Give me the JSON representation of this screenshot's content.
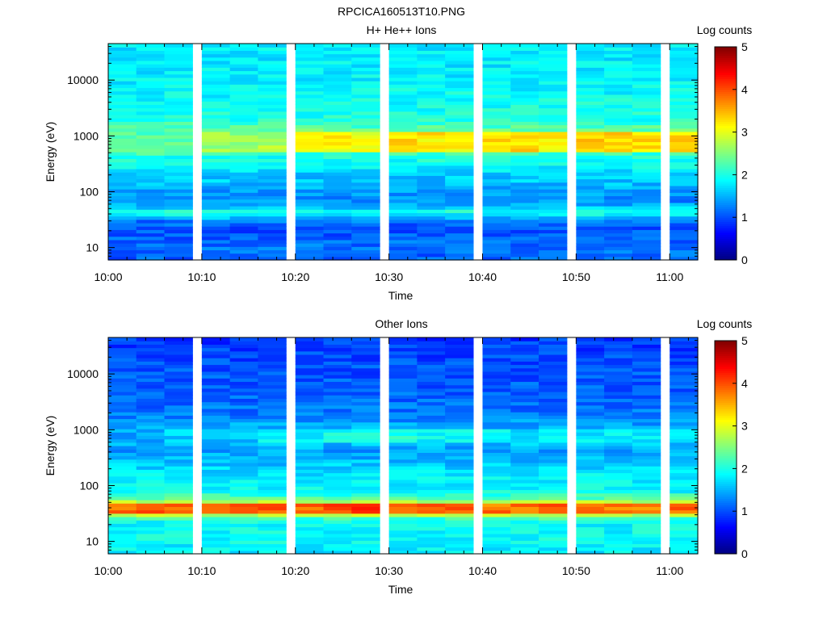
{
  "figure_title": "RPCICA160513T10.PNG",
  "chart_data": [
    {
      "type": "heatmap",
      "title": "H+ He++ Ions",
      "xlabel": "Time",
      "ylabel": "Energy (eV)",
      "y_scale": "log",
      "ylim": [
        6,
        45000
      ],
      "xlim": [
        "10:00",
        "11:03"
      ],
      "x_ticks": [
        "10:00",
        "10:10",
        "10:20",
        "10:30",
        "10:40",
        "10:50",
        "11:00"
      ],
      "y_ticks": [
        "10",
        "100",
        "1000",
        "10000"
      ],
      "colorbar": {
        "label": "Log counts",
        "range": [
          0,
          5
        ],
        "ticks": [
          "0",
          "1",
          "2",
          "3",
          "4",
          "5"
        ],
        "colormap": "jet"
      },
      "time_bins": [
        "10:00",
        "10:03",
        "10:06",
        "10:10",
        "10:13",
        "10:16",
        "10:20",
        "10:23",
        "10:26",
        "10:30",
        "10:33",
        "10:36",
        "10:40",
        "10:43",
        "10:46",
        "10:50",
        "10:53",
        "10:56",
        "11:00"
      ],
      "profile": [
        {
          "energy_eV": 7,
          "log_counts": 1.1
        },
        {
          "energy_eV": 10,
          "log_counts": 1.2
        },
        {
          "energy_eV": 15,
          "log_counts": 1.1
        },
        {
          "energy_eV": 22,
          "log_counts": 1.0
        },
        {
          "energy_eV": 30,
          "log_counts": 1.2
        },
        {
          "energy_eV": 38,
          "log_counts": 1.8
        },
        {
          "energy_eV": 45,
          "log_counts": 2.0
        },
        {
          "energy_eV": 55,
          "log_counts": 1.5
        },
        {
          "energy_eV": 70,
          "log_counts": 1.3
        },
        {
          "energy_eV": 100,
          "log_counts": 1.4
        },
        {
          "energy_eV": 150,
          "log_counts": 1.6
        },
        {
          "energy_eV": 200,
          "log_counts": 1.6
        },
        {
          "energy_eV": 300,
          "log_counts": 1.9
        },
        {
          "energy_eV": 450,
          "log_counts": 2.0
        },
        {
          "energy_eV": 600,
          "log_counts": 2.6
        },
        {
          "energy_eV": 750,
          "log_counts": 3.2
        },
        {
          "energy_eV": 900,
          "log_counts": 3.0
        },
        {
          "energy_eV": 1200,
          "log_counts": 2.4
        },
        {
          "energy_eV": 2000,
          "log_counts": 2.0
        },
        {
          "energy_eV": 5000,
          "log_counts": 1.9
        },
        {
          "energy_eV": 15000,
          "log_counts": 1.8
        },
        {
          "energy_eV": 45000,
          "log_counts": 1.8
        }
      ],
      "time_modulation": [
        {
          "energy_range_eV": [
            500,
            1200
          ],
          "log_counts_by_time_bin": [
            2.3,
            2.3,
            2.4,
            2.6,
            2.6,
            2.7,
            3.1,
            3.1,
            3.0,
            3.3,
            3.2,
            3.2,
            3.3,
            3.3,
            3.2,
            3.4,
            3.3,
            3.3,
            3.3
          ]
        }
      ]
    },
    {
      "type": "heatmap",
      "title": "Other Ions",
      "xlabel": "Time",
      "ylabel": "Energy (eV)",
      "y_scale": "log",
      "ylim": [
        6,
        45000
      ],
      "xlim": [
        "10:00",
        "11:03"
      ],
      "x_ticks": [
        "10:00",
        "10:10",
        "10:20",
        "10:30",
        "10:40",
        "10:50",
        "11:00"
      ],
      "y_ticks": [
        "10",
        "100",
        "1000",
        "10000"
      ],
      "colorbar": {
        "label": "Log counts",
        "range": [
          0,
          5
        ],
        "ticks": [
          "0",
          "1",
          "2",
          "3",
          "4",
          "5"
        ],
        "colormap": "jet"
      },
      "time_bins": [
        "10:00",
        "10:03",
        "10:06",
        "10:10",
        "10:13",
        "10:16",
        "10:20",
        "10:23",
        "10:26",
        "10:30",
        "10:33",
        "10:36",
        "10:40",
        "10:43",
        "10:46",
        "10:50",
        "10:53",
        "10:56",
        "11:00"
      ],
      "profile": [
        {
          "energy_eV": 7,
          "log_counts": 1.8
        },
        {
          "energy_eV": 10,
          "log_counts": 1.9
        },
        {
          "energy_eV": 15,
          "log_counts": 1.9
        },
        {
          "energy_eV": 22,
          "log_counts": 1.9
        },
        {
          "energy_eV": 28,
          "log_counts": 2.3
        },
        {
          "energy_eV": 33,
          "log_counts": 3.5
        },
        {
          "energy_eV": 40,
          "log_counts": 3.9
        },
        {
          "energy_eV": 47,
          "log_counts": 3.5
        },
        {
          "energy_eV": 55,
          "log_counts": 2.4
        },
        {
          "energy_eV": 80,
          "log_counts": 1.9
        },
        {
          "energy_eV": 150,
          "log_counts": 1.8
        },
        {
          "energy_eV": 250,
          "log_counts": 1.6
        },
        {
          "energy_eV": 400,
          "log_counts": 1.4
        },
        {
          "energy_eV": 600,
          "log_counts": 1.6
        },
        {
          "energy_eV": 800,
          "log_counts": 1.8
        },
        {
          "energy_eV": 1100,
          "log_counts": 1.5
        },
        {
          "energy_eV": 2000,
          "log_counts": 1.2
        },
        {
          "energy_eV": 5000,
          "log_counts": 1.1
        },
        {
          "energy_eV": 15000,
          "log_counts": 1.0
        },
        {
          "energy_eV": 45000,
          "log_counts": 0.9
        }
      ],
      "time_modulation": [
        {
          "energy_range_eV": [
            33,
            47
          ],
          "log_counts_by_time_bin": [
            3.9,
            3.9,
            3.9,
            3.9,
            4.0,
            3.9,
            3.9,
            4.0,
            4.1,
            4.0,
            4.0,
            3.9,
            3.8,
            3.8,
            4.0,
            3.9,
            3.8,
            3.8,
            3.9
          ]
        },
        {
          "energy_range_eV": [
            600,
            1000
          ],
          "log_counts_by_time_bin": [
            1.4,
            1.5,
            1.6,
            1.6,
            1.6,
            1.9,
            1.9,
            1.9,
            1.9,
            2.1,
            1.9,
            1.9,
            1.8,
            1.8,
            1.8,
            1.8,
            1.8,
            1.8,
            1.8
          ]
        }
      ]
    }
  ]
}
